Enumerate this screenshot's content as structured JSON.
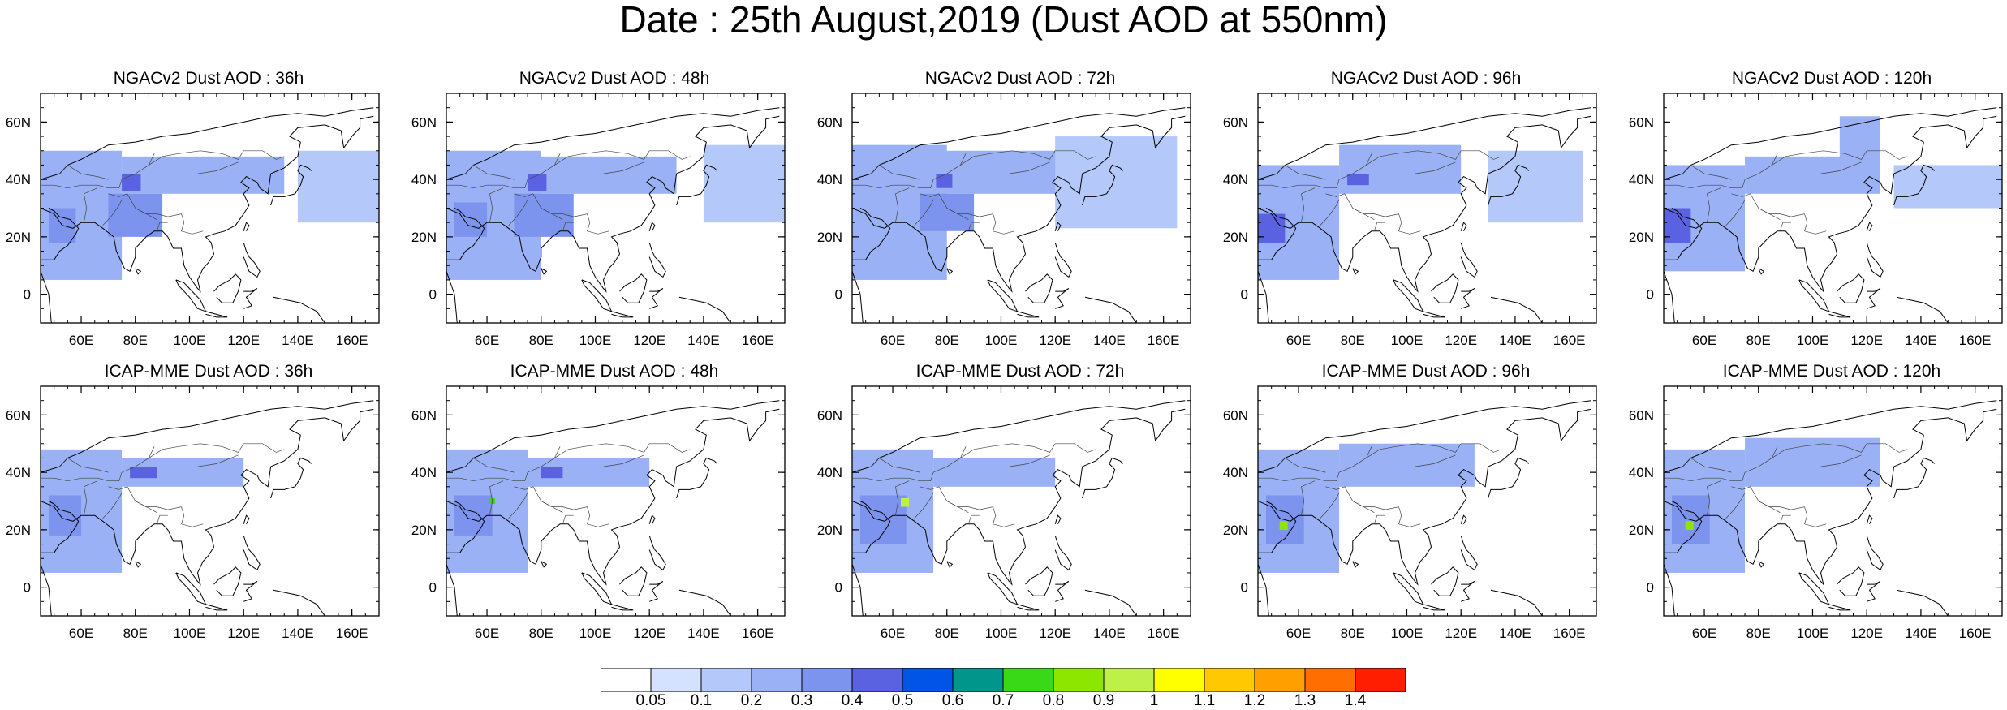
{
  "title": "Date : 25th August,2019 (Dust AOD at 550nm)",
  "map_extent": {
    "lon": [
      45,
      170
    ],
    "lat": [
      -10,
      70
    ]
  },
  "lon_ticks": [
    "60E",
    "80E",
    "100E",
    "120E",
    "140E",
    "160E"
  ],
  "lon_tick_values": [
    60,
    80,
    100,
    120,
    140,
    160
  ],
  "lat_ticks": [
    "60N",
    "40N",
    "20N",
    "0"
  ],
  "lat_tick_values": [
    60,
    40,
    20,
    0
  ],
  "panels": [
    {
      "title": "NGACv2 Dust AOD : 36h"
    },
    {
      "title": "NGACv2 Dust AOD : 48h"
    },
    {
      "title": "NGACv2 Dust AOD : 72h"
    },
    {
      "title": "NGACv2 Dust AOD : 96h"
    },
    {
      "title": "NGACv2 Dust AOD : 120h"
    },
    {
      "title": "ICAP-MME Dust AOD : 36h"
    },
    {
      "title": "ICAP-MME Dust AOD : 48h"
    },
    {
      "title": "ICAP-MME Dust AOD : 72h"
    },
    {
      "title": "ICAP-MME Dust AOD : 96h"
    },
    {
      "title": "ICAP-MME Dust AOD : 120h"
    }
  ],
  "colorbar": {
    "colors": [
      "#ffffff",
      "#d5e2ff",
      "#b4c8fa",
      "#9ab2f5",
      "#7d94ee",
      "#5a62e2",
      "#0055e6",
      "#00968c",
      "#39d917",
      "#8ce600",
      "#bff04a",
      "#ffff00",
      "#ffc800",
      "#ff9f00",
      "#ff6e00",
      "#ff1e00"
    ],
    "labels": [
      "0.05",
      "0.1",
      "0.2",
      "0.3",
      "0.4",
      "0.5",
      "0.6",
      "0.7",
      "0.8",
      "0.9",
      "1",
      "1.1",
      "1.2",
      "1.3",
      "1.4"
    ]
  },
  "chart_data": {
    "type": "heatmap",
    "variable": "Dust AOD at 550nm",
    "date": "25th August,2019",
    "panels": [
      {
        "model": "NGACv2",
        "lead": "36h",
        "regions": [
          {
            "lon": [
              45,
              75
            ],
            "lat": [
              5,
              50
            ],
            "aod": 0.2
          },
          {
            "lon": [
              75,
              135
            ],
            "lat": [
              35,
              48
            ],
            "aod": 0.2
          },
          {
            "lon": [
              70,
              90
            ],
            "lat": [
              20,
              35
            ],
            "aod": 0.3
          },
          {
            "lon": [
              75,
              82
            ],
            "lat": [
              36,
              42
            ],
            "aod": 0.4
          },
          {
            "lon": [
              140,
              170
            ],
            "lat": [
              25,
              50
            ],
            "aod": 0.1
          },
          {
            "lon": [
              48,
              58
            ],
            "lat": [
              18,
              30
            ],
            "aod": 0.3
          }
        ]
      },
      {
        "model": "NGACv2",
        "lead": "48h",
        "regions": [
          {
            "lon": [
              45,
              80
            ],
            "lat": [
              5,
              50
            ],
            "aod": 0.2
          },
          {
            "lon": [
              75,
              130
            ],
            "lat": [
              35,
              48
            ],
            "aod": 0.2
          },
          {
            "lon": [
              70,
              92
            ],
            "lat": [
              20,
              35
            ],
            "aod": 0.3
          },
          {
            "lon": [
              75,
              82
            ],
            "lat": [
              36,
              42
            ],
            "aod": 0.4
          },
          {
            "lon": [
              140,
              170
            ],
            "lat": [
              25,
              52
            ],
            "aod": 0.1
          },
          {
            "lon": [
              48,
              60
            ],
            "lat": [
              20,
              32
            ],
            "aod": 0.3
          }
        ]
      },
      {
        "model": "NGACv2",
        "lead": "72h",
        "regions": [
          {
            "lon": [
              45,
              80
            ],
            "lat": [
              5,
              52
            ],
            "aod": 0.2
          },
          {
            "lon": [
              75,
              125
            ],
            "lat": [
              35,
              50
            ],
            "aod": 0.2
          },
          {
            "lon": [
              70,
              90
            ],
            "lat": [
              22,
              35
            ],
            "aod": 0.3
          },
          {
            "lon": [
              76,
              82
            ],
            "lat": [
              37,
              42
            ],
            "aod": 0.4
          },
          {
            "lon": [
              120,
              165
            ],
            "lat": [
              23,
              55
            ],
            "aod": 0.1
          }
        ]
      },
      {
        "model": "NGACv2",
        "lead": "96h",
        "regions": [
          {
            "lon": [
              45,
              75
            ],
            "lat": [
              5,
              45
            ],
            "aod": 0.2
          },
          {
            "lon": [
              75,
              120
            ],
            "lat": [
              35,
              52
            ],
            "aod": 0.2
          },
          {
            "lon": [
              45,
              55
            ],
            "lat": [
              18,
              28
            ],
            "aod": 0.4
          },
          {
            "lon": [
              78,
              86
            ],
            "lat": [
              38,
              42
            ],
            "aod": 0.4
          },
          {
            "lon": [
              130,
              165
            ],
            "lat": [
              25,
              50
            ],
            "aod": 0.1
          }
        ]
      },
      {
        "model": "NGACv2",
        "lead": "120h",
        "regions": [
          {
            "lon": [
              45,
              75
            ],
            "lat": [
              8,
              45
            ],
            "aod": 0.2
          },
          {
            "lon": [
              75,
              125
            ],
            "lat": [
              35,
              48
            ],
            "aod": 0.2
          },
          {
            "lon": [
              110,
              125
            ],
            "lat": [
              45,
              62
            ],
            "aod": 0.2
          },
          {
            "lon": [
              45,
              55
            ],
            "lat": [
              18,
              30
            ],
            "aod": 0.4
          },
          {
            "lon": [
              130,
              170
            ],
            "lat": [
              30,
              45
            ],
            "aod": 0.1
          }
        ]
      },
      {
        "model": "ICAP-MME",
        "lead": "36h",
        "regions": [
          {
            "lon": [
              45,
              75
            ],
            "lat": [
              5,
              48
            ],
            "aod": 0.2
          },
          {
            "lon": [
              75,
              120
            ],
            "lat": [
              35,
              45
            ],
            "aod": 0.2
          },
          {
            "lon": [
              48,
              60
            ],
            "lat": [
              18,
              32
            ],
            "aod": 0.3
          },
          {
            "lon": [
              78,
              88
            ],
            "lat": [
              38,
              42
            ],
            "aod": 0.4
          }
        ]
      },
      {
        "model": "ICAP-MME",
        "lead": "48h",
        "regions": [
          {
            "lon": [
              45,
              75
            ],
            "lat": [
              5,
              48
            ],
            "aod": 0.2
          },
          {
            "lon": [
              75,
              120
            ],
            "lat": [
              35,
              45
            ],
            "aod": 0.2
          },
          {
            "lon": [
              48,
              62
            ],
            "lat": [
              18,
              32
            ],
            "aod": 0.3
          },
          {
            "lon": [
              80,
              88
            ],
            "lat": [
              38,
              42
            ],
            "aod": 0.4
          },
          {
            "lon": [
              61,
              63
            ],
            "lat": [
              29,
              31
            ],
            "aod": 0.7
          }
        ]
      },
      {
        "model": "ICAP-MME",
        "lead": "72h",
        "regions": [
          {
            "lon": [
              45,
              75
            ],
            "lat": [
              5,
              48
            ],
            "aod": 0.2
          },
          {
            "lon": [
              75,
              120
            ],
            "lat": [
              35,
              45
            ],
            "aod": 0.2
          },
          {
            "lon": [
              48,
              65
            ],
            "lat": [
              15,
              32
            ],
            "aod": 0.3
          },
          {
            "lon": [
              63,
              66
            ],
            "lat": [
              28,
              31
            ],
            "aod": 0.9
          }
        ]
      },
      {
        "model": "ICAP-MME",
        "lead": "96h",
        "regions": [
          {
            "lon": [
              45,
              75
            ],
            "lat": [
              5,
              48
            ],
            "aod": 0.2
          },
          {
            "lon": [
              75,
              125
            ],
            "lat": [
              35,
              50
            ],
            "aod": 0.2
          },
          {
            "lon": [
              48,
              62
            ],
            "lat": [
              15,
              32
            ],
            "aod": 0.3
          },
          {
            "lon": [
              53,
              56
            ],
            "lat": [
              20,
              23
            ],
            "aod": 0.8
          }
        ]
      },
      {
        "model": "ICAP-MME",
        "lead": "120h",
        "regions": [
          {
            "lon": [
              45,
              75
            ],
            "lat": [
              5,
              48
            ],
            "aod": 0.2
          },
          {
            "lon": [
              75,
              125
            ],
            "lat": [
              35,
              52
            ],
            "aod": 0.2
          },
          {
            "lon": [
              48,
              62
            ],
            "lat": [
              15,
              32
            ],
            "aod": 0.3
          },
          {
            "lon": [
              53,
              56
            ],
            "lat": [
              20,
              23
            ],
            "aod": 0.8
          }
        ]
      }
    ]
  }
}
